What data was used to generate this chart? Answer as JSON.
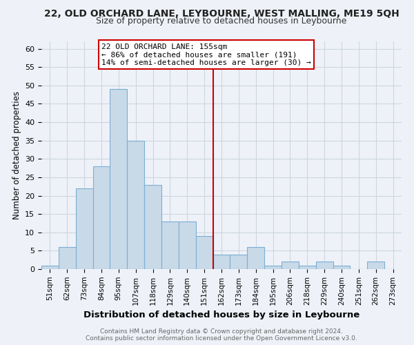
{
  "title": "22, OLD ORCHARD LANE, LEYBOURNE, WEST MALLING, ME19 5QH",
  "subtitle": "Size of property relative to detached houses in Leybourne",
  "xlabel": "Distribution of detached houses by size in Leybourne",
  "ylabel": "Number of detached properties",
  "bar_labels": [
    "51sqm",
    "62sqm",
    "73sqm",
    "84sqm",
    "95sqm",
    "107sqm",
    "118sqm",
    "129sqm",
    "140sqm",
    "151sqm",
    "162sqm",
    "173sqm",
    "184sqm",
    "195sqm",
    "206sqm",
    "218sqm",
    "229sqm",
    "240sqm",
    "251sqm",
    "262sqm",
    "273sqm"
  ],
  "bar_values": [
    1,
    6,
    22,
    28,
    49,
    35,
    23,
    13,
    13,
    9,
    4,
    4,
    6,
    1,
    2,
    1,
    2,
    1,
    0,
    2,
    0
  ],
  "bar_color": "#c8d9e8",
  "bar_edge_color": "#7bafd4",
  "vline_bar_idx": 9.5,
  "vline_color": "#cc0000",
  "annotation_line1": "22 OLD ORCHARD LANE: 155sqm",
  "annotation_line2": "← 86% of detached houses are smaller (191)",
  "annotation_line3": "14% of semi-detached houses are larger (30) →",
  "annotation_box_color": "#cc0000",
  "ylim": [
    0,
    62
  ],
  "yticks": [
    0,
    5,
    10,
    15,
    20,
    25,
    30,
    35,
    40,
    45,
    50,
    55,
    60
  ],
  "grid_color": "#ccd5e0",
  "bg_color": "#eef2f8",
  "footer_line1": "Contains HM Land Registry data © Crown copyright and database right 2024.",
  "footer_line2": "Contains public sector information licensed under the Open Government Licence v3.0.",
  "title_fontsize": 10,
  "subtitle_fontsize": 9
}
